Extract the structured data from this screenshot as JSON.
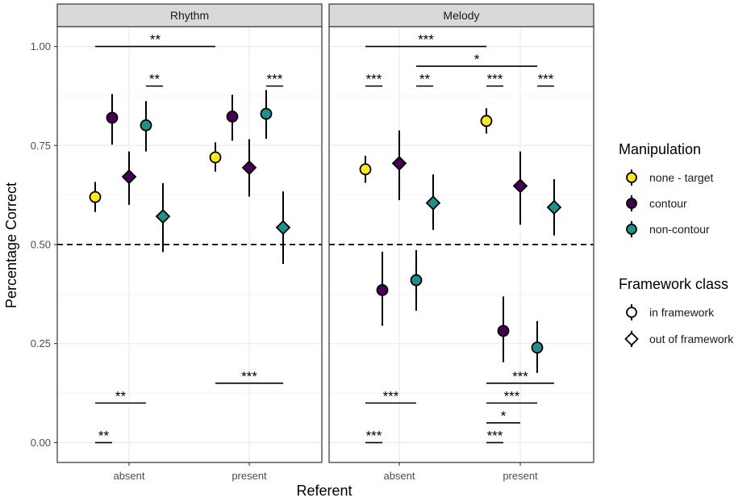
{
  "chart_data": {
    "type": "scatter",
    "ylabel": "Percentage Correct",
    "xlabel": "Referent",
    "ylim": [
      -0.05,
      1.05
    ],
    "yticks": [
      "0.00",
      "0.25",
      "0.50",
      "0.75",
      "1.00"
    ],
    "reference_line": 0.5,
    "categories": [
      "absent",
      "present"
    ],
    "panels": [
      {
        "name": "Rhythm",
        "points": [
          {
            "x": "absent",
            "manipulation": "none - target",
            "framework": "in framework",
            "y": 0.62,
            "lo": 0.582,
            "hi": 0.658
          },
          {
            "x": "absent",
            "manipulation": "contour",
            "framework": "in framework",
            "y": 0.82,
            "lo": 0.752,
            "hi": 0.88
          },
          {
            "x": "absent",
            "manipulation": "contour",
            "framework": "out of framework",
            "y": 0.671,
            "lo": 0.6,
            "hi": 0.735
          },
          {
            "x": "absent",
            "manipulation": "non-contour",
            "framework": "in framework",
            "y": 0.801,
            "lo": 0.735,
            "hi": 0.862
          },
          {
            "x": "absent",
            "manipulation": "non-contour",
            "framework": "out of framework",
            "y": 0.571,
            "lo": 0.481,
            "hi": 0.655
          },
          {
            "x": "present",
            "manipulation": "none - target",
            "framework": "in framework",
            "y": 0.72,
            "lo": 0.684,
            "hi": 0.758
          },
          {
            "x": "present",
            "manipulation": "contour",
            "framework": "in framework",
            "y": 0.823,
            "lo": 0.762,
            "hi": 0.878
          },
          {
            "x": "present",
            "manipulation": "contour",
            "framework": "out of framework",
            "y": 0.694,
            "lo": 0.621,
            "hi": 0.766
          },
          {
            "x": "present",
            "manipulation": "non-contour",
            "framework": "in framework",
            "y": 0.83,
            "lo": 0.767,
            "hi": 0.89
          },
          {
            "x": "present",
            "manipulation": "non-contour",
            "framework": "out of framework",
            "y": 0.543,
            "lo": 0.451,
            "hi": 0.634
          }
        ],
        "brackets": [
          {
            "from": "absent:none",
            "to": "present:none",
            "y": 1.0,
            "label": "**"
          },
          {
            "from": "absent:noncontour-in",
            "to": "absent:noncontour-out",
            "y": 0.9,
            "label": "**"
          },
          {
            "from": "present:noncontour-in",
            "to": "present:noncontour-out",
            "y": 0.9,
            "label": "***"
          },
          {
            "from": "absent:none",
            "to": "absent:noncontour-in",
            "y": 0.1,
            "label": "**"
          },
          {
            "from": "present:none",
            "to": "present:noncontour-out",
            "y": 0.15,
            "label": "***"
          },
          {
            "from": "absent:none",
            "to": "absent:contour-in",
            "y": 0.0,
            "label": "**"
          }
        ]
      },
      {
        "name": "Melody",
        "points": [
          {
            "x": "absent",
            "manipulation": "none - target",
            "framework": "in framework",
            "y": 0.69,
            "lo": 0.656,
            "hi": 0.724
          },
          {
            "x": "absent",
            "manipulation": "contour",
            "framework": "in framework",
            "y": 0.385,
            "lo": 0.295,
            "hi": 0.482
          },
          {
            "x": "absent",
            "manipulation": "contour",
            "framework": "out of framework",
            "y": 0.705,
            "lo": 0.612,
            "hi": 0.788
          },
          {
            "x": "absent",
            "manipulation": "non-contour",
            "framework": "in framework",
            "y": 0.41,
            "lo": 0.333,
            "hi": 0.486
          },
          {
            "x": "absent",
            "manipulation": "non-contour",
            "framework": "out of framework",
            "y": 0.605,
            "lo": 0.537,
            "hi": 0.677
          },
          {
            "x": "present",
            "manipulation": "none - target",
            "framework": "in framework",
            "y": 0.812,
            "lo": 0.78,
            "hi": 0.844
          },
          {
            "x": "present",
            "manipulation": "contour",
            "framework": "in framework",
            "y": 0.282,
            "lo": 0.203,
            "hi": 0.369
          },
          {
            "x": "present",
            "manipulation": "contour",
            "framework": "out of framework",
            "y": 0.648,
            "lo": 0.55,
            "hi": 0.735
          },
          {
            "x": "present",
            "manipulation": "non-contour",
            "framework": "in framework",
            "y": 0.24,
            "lo": 0.176,
            "hi": 0.307
          },
          {
            "x": "present",
            "manipulation": "non-contour",
            "framework": "out of framework",
            "y": 0.594,
            "lo": 0.523,
            "hi": 0.665
          }
        ],
        "brackets": [
          {
            "from": "absent:none",
            "to": "present:none",
            "y": 1.0,
            "label": "***"
          },
          {
            "from": "absent:noncontour-in",
            "to": "present:noncontour-in",
            "y": 0.95,
            "label": "*"
          },
          {
            "from": "absent:none",
            "to": "absent:contour-in",
            "y": 0.9,
            "label": "***"
          },
          {
            "from": "absent:noncontour-in",
            "to": "absent:noncontour-out",
            "y": 0.9,
            "label": "**"
          },
          {
            "from": "present:none",
            "to": "present:contour-in",
            "y": 0.9,
            "label": "***"
          },
          {
            "from": "present:noncontour-in",
            "to": "present:noncontour-out",
            "y": 0.9,
            "label": "***"
          },
          {
            "from": "present:none",
            "to": "present:noncontour-out",
            "y": 0.15,
            "label": "***"
          },
          {
            "from": "absent:none",
            "to": "absent:noncontour-in",
            "y": 0.1,
            "label": "***"
          },
          {
            "from": "present:none",
            "to": "present:noncontour-in",
            "y": 0.1,
            "label": "***"
          },
          {
            "from": "present:none",
            "to": "present:contour-out",
            "y": 0.05,
            "label": "*"
          },
          {
            "from": "absent:none",
            "to": "absent:contour-in",
            "y": 0.0,
            "label": "***"
          },
          {
            "from": "present:none",
            "to": "present:contour-in",
            "y": 0.0,
            "label": "***"
          }
        ]
      }
    ],
    "legend": {
      "manipulation_title": "Manipulation",
      "manipulation": [
        {
          "label": "none - target",
          "color": "#FDE725"
        },
        {
          "label": "contour",
          "color": "#440154"
        },
        {
          "label": "non-contour",
          "color": "#21908C"
        }
      ],
      "framework_title": "Framework class",
      "framework": [
        {
          "label": "in framework",
          "shape": "circle"
        },
        {
          "label": "out of framework",
          "shape": "diamond"
        }
      ],
      "position": "right"
    },
    "colors": {
      "none - target": "#FDE725",
      "contour": "#440154",
      "non-contour": "#21908C",
      "grid": "#EBEBEB",
      "strip": "#D9D9D9"
    }
  }
}
